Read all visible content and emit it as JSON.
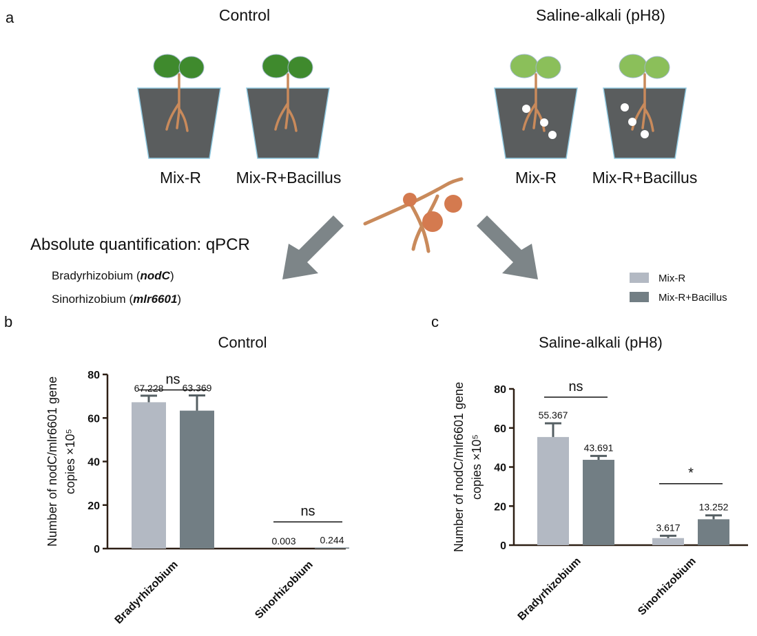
{
  "panel_a": {
    "letter": "a",
    "control_title": "Control",
    "saline_title": "Saline-alkali (pH8)",
    "pot_labels": [
      "Mix-R",
      "Mix-R+Bacillus",
      "Mix-R",
      "Mix-R+Bacillus"
    ],
    "method_title": "Absolute quantification:  qPCR",
    "gene_lines": [
      {
        "genus": "Bradyrhizobium",
        "gene": "nodC"
      },
      {
        "genus": "Sinorhizobium",
        "gene": "mlr6601"
      }
    ]
  },
  "legend": {
    "items": [
      {
        "label": "Mix-R",
        "color": "#b3b9c3"
      },
      {
        "label": "Mix-R+Bacillus",
        "color": "#727e84"
      }
    ]
  },
  "colors": {
    "control_leaf": "#3f8a2d",
    "saline_leaf": "#8bbf5a",
    "root": "#c98a5b",
    "soil": "#5a5d5e",
    "nodule": "#d47a4f",
    "arrow": "#7d8588",
    "axis": "#2d1f14"
  },
  "chart_data": [
    {
      "panel": "b",
      "type": "bar",
      "title": "Control",
      "ylabel": "Number of nodC/mlr6601 gene copies ×10⁵",
      "ylim": [
        0,
        80
      ],
      "yticks": [
        0,
        20,
        40,
        60,
        80
      ],
      "categories": [
        "Bradyrhizobium",
        "Sinorhizobium"
      ],
      "series": [
        {
          "name": "Mix-R",
          "values": [
            67.228,
            0.003
          ],
          "errors": [
            3.0,
            0.0
          ]
        },
        {
          "name": "Mix-R+Bacillus",
          "values": [
            63.369,
            0.244
          ],
          "errors": [
            7.0,
            0.0
          ]
        }
      ],
      "value_labels": [
        [
          "67.228",
          "0.003"
        ],
        [
          "63.369",
          "0.244"
        ]
      ],
      "significance": [
        "ns",
        "ns"
      ]
    },
    {
      "panel": "c",
      "type": "bar",
      "title": "Saline-alkali (pH8)",
      "ylabel": "Number of nodC/mlr6601 gene copies ×10⁵",
      "ylim": [
        0,
        80
      ],
      "yticks": [
        0,
        20,
        40,
        60,
        80
      ],
      "categories": [
        "Bradyrhizobium",
        "Sinorhizobium"
      ],
      "series": [
        {
          "name": "Mix-R",
          "values": [
            55.367,
            3.617
          ],
          "errors": [
            7.0,
            1.2
          ]
        },
        {
          "name": "Mix-R+Bacillus",
          "values": [
            43.691,
            13.252
          ],
          "errors": [
            2.0,
            2.0
          ]
        }
      ],
      "value_labels": [
        [
          "55.367",
          "3.617"
        ],
        [
          "43.691",
          "13.252"
        ]
      ],
      "significance": [
        "ns",
        "*"
      ]
    }
  ]
}
